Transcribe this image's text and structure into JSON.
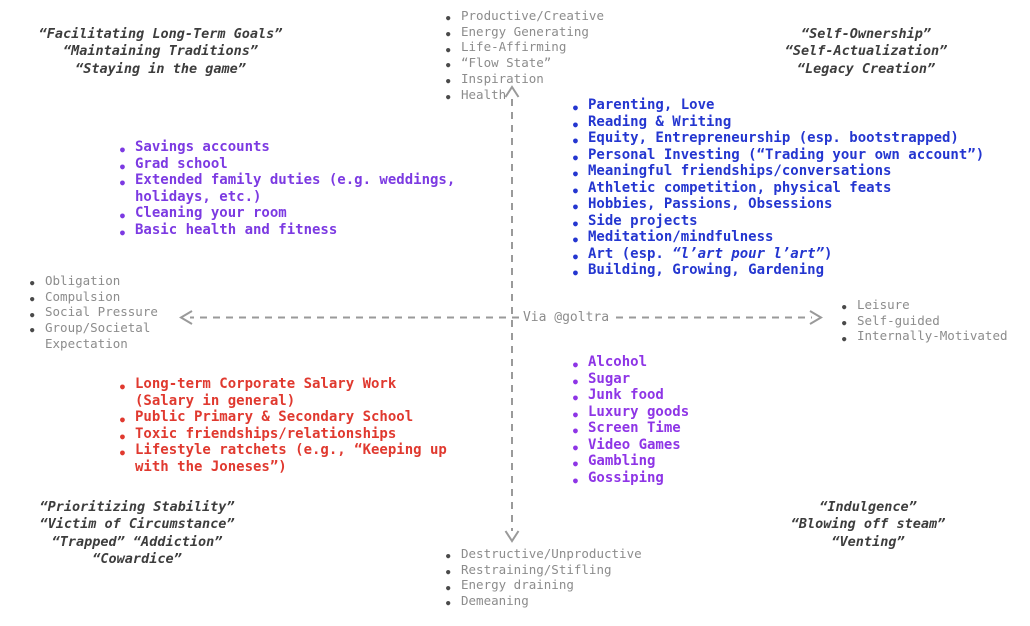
{
  "colors": {
    "axis_gray": "#9a9a9a",
    "label_gray": "#8c8c8c",
    "bullet_gray": "#4a4a4a",
    "quote_dark": "#3d3d3d",
    "purple_upper": "#7c3ae2",
    "blue": "#2436d0",
    "red": "#e0392f",
    "purple_lower": "#8e35e6"
  },
  "axis_labels": {
    "top": [
      "Productive/Creative",
      "Energy Generating",
      "Life-Affirming",
      "“Flow State”",
      "Inspiration",
      "Health"
    ],
    "bottom": [
      "Destructive/Unproductive",
      "Restraining/Stifling",
      "Energy draining",
      "Demeaning"
    ],
    "left": [
      "Obligation",
      "Compulsion",
      "Social Pressure",
      "Group/Societal\nExpectation"
    ],
    "right": [
      "Leisure",
      "Self-guided",
      "Internally-Motivated"
    ],
    "center_caption": "Via @goltra"
  },
  "corner_quotes": {
    "top_left": [
      "“Facilitating Long-Term Goals”",
      "“Maintaining Traditions”",
      "“Staying in the game”"
    ],
    "top_right": [
      "“Self-Ownership”",
      "“Self-Actualization”",
      "“Legacy Creation”"
    ],
    "bottom_left": [
      "“Prioritizing Stability”",
      "“Victim of Circumstance”",
      "“Trapped” “Addiction”",
      "“Cowardice”"
    ],
    "bottom_right": [
      "“Indulgence”",
      "“Blowing off steam”",
      "“Venting”"
    ]
  },
  "quadrant_items": {
    "upper_left": [
      "Savings accounts",
      "Grad school",
      "Extended family duties (e.g. weddings,\nholidays, etc.)",
      "Cleaning your room",
      "Basic health and fitness"
    ],
    "upper_right": [
      "Parenting, Love",
      "Reading & Writing",
      "Equity, Entrepreneurship (esp. bootstrapped)",
      "Personal Investing (“Trading your own account”)",
      "Meaningful friendships/conversations",
      "Athletic competition, physical feats",
      "Hobbies, Passions, Obsessions",
      "Side projects",
      "Meditation/mindfulness",
      [
        "Art (esp. ",
        {
          "i": "“l’art pour l’art”"
        },
        ")"
      ],
      "Building, Growing, Gardening"
    ],
    "lower_left": [
      "Long-term Corporate Salary Work\n(Salary in general)",
      "Public Primary & Secondary School",
      "Toxic friendships/relationships",
      "Lifestyle ratchets (e.g., “Keeping up\nwith the Joneses”)"
    ],
    "lower_right": [
      "Alcohol",
      "Sugar",
      "Junk food",
      "Luxury goods",
      "Screen Time",
      "Video Games",
      "Gambling",
      "Gossiping"
    ]
  }
}
